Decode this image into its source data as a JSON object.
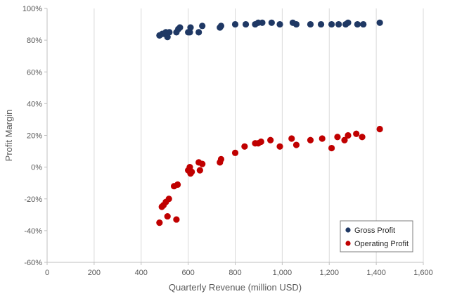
{
  "chart_data": {
    "type": "scatter",
    "title": "",
    "xlabel": "Quarterly Revenue (million USD)",
    "ylabel": "Profit Margin",
    "xlim": [
      0,
      1600
    ],
    "ylim": [
      -60,
      100
    ],
    "x_ticks": [
      0,
      200,
      400,
      600,
      800,
      1000,
      1200,
      1400,
      1600
    ],
    "x_tick_labels": [
      "0",
      "200",
      "400",
      "600",
      "800",
      "1,000",
      "1,200",
      "1,400",
      "1,600"
    ],
    "y_ticks": [
      -60,
      -40,
      -20,
      0,
      20,
      40,
      60,
      80,
      100
    ],
    "y_tick_labels": [
      "-60%",
      "-40%",
      "-20%",
      "0%",
      "20%",
      "40%",
      "60%",
      "80%",
      "100%"
    ],
    "grid": "vertical",
    "legend_position": "bottom-right",
    "series": [
      {
        "name": "Gross Profit",
        "color": "#1f3864",
        "points": [
          [
            478,
            83
          ],
          [
            490,
            84
          ],
          [
            500,
            84
          ],
          [
            505,
            85
          ],
          [
            512,
            82
          ],
          [
            520,
            85
          ],
          [
            550,
            85
          ],
          [
            558,
            87
          ],
          [
            565,
            88
          ],
          [
            600,
            85
          ],
          [
            607,
            85
          ],
          [
            610,
            88
          ],
          [
            645,
            85
          ],
          [
            660,
            89
          ],
          [
            735,
            88
          ],
          [
            740,
            89
          ],
          [
            800,
            90
          ],
          [
            845,
            90
          ],
          [
            885,
            90
          ],
          [
            898,
            91
          ],
          [
            915,
            91
          ],
          [
            955,
            91
          ],
          [
            990,
            90
          ],
          [
            1045,
            91
          ],
          [
            1060,
            90
          ],
          [
            1120,
            90
          ],
          [
            1165,
            90
          ],
          [
            1210,
            90
          ],
          [
            1240,
            90
          ],
          [
            1270,
            90
          ],
          [
            1280,
            91
          ],
          [
            1320,
            90
          ],
          [
            1345,
            90
          ],
          [
            1415,
            91
          ]
        ]
      },
      {
        "name": "Operating Profit",
        "color": "#c00000",
        "points": [
          [
            478,
            -35
          ],
          [
            488,
            -25
          ],
          [
            495,
            -24
          ],
          [
            505,
            -22
          ],
          [
            512,
            -31
          ],
          [
            518,
            -20
          ],
          [
            540,
            -12
          ],
          [
            550,
            -33
          ],
          [
            555,
            -11
          ],
          [
            600,
            -2
          ],
          [
            607,
            0
          ],
          [
            610,
            -4
          ],
          [
            615,
            -3
          ],
          [
            645,
            3
          ],
          [
            650,
            -2
          ],
          [
            660,
            2
          ],
          [
            735,
            3
          ],
          [
            740,
            5
          ],
          [
            800,
            9
          ],
          [
            840,
            13
          ],
          [
            885,
            15
          ],
          [
            898,
            15
          ],
          [
            910,
            16
          ],
          [
            950,
            17
          ],
          [
            990,
            13
          ],
          [
            1040,
            18
          ],
          [
            1060,
            14
          ],
          [
            1120,
            17
          ],
          [
            1170,
            18
          ],
          [
            1210,
            12
          ],
          [
            1235,
            19
          ],
          [
            1265,
            17
          ],
          [
            1280,
            20
          ],
          [
            1315,
            21
          ],
          [
            1340,
            19
          ],
          [
            1415,
            24
          ]
        ]
      }
    ]
  }
}
